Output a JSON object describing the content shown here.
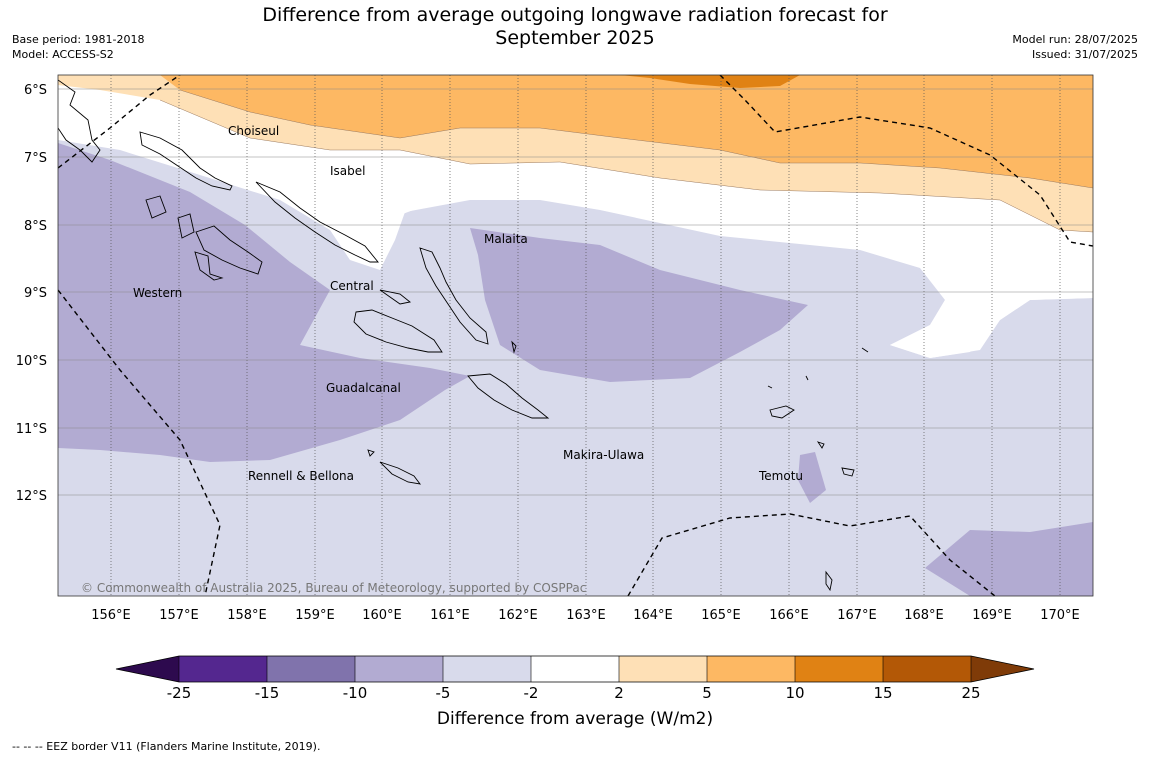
{
  "header": {
    "title_line1": "Difference from average outgoing longwave radiation forecast for",
    "title_line2": "September 2025",
    "base_period": "Base period: 1981-2018",
    "model": "Model: ACCESS-S2",
    "model_run": "Model run: 28/07/2025",
    "issued": "Issued: 31/07/2025"
  },
  "map": {
    "lat_labels": [
      "6°S",
      "7°S",
      "8°S",
      "9°S",
      "10°S",
      "11°S",
      "12°S"
    ],
    "lon_labels": [
      "156°E",
      "157°E",
      "158°E",
      "159°E",
      "160°E",
      "161°E",
      "162°E",
      "163°E",
      "164°E",
      "165°E",
      "166°E",
      "167°E",
      "168°E",
      "169°E",
      "170°E"
    ],
    "provinces": [
      "Choiseul",
      "Isabel",
      "Malaita",
      "Western",
      "Central",
      "Guadalcanal",
      "Makira-Ulawa",
      "Temotu",
      "Rennell & Bellona"
    ],
    "copyright": "© Commonwealth of Australia 2025, Bureau of Meteorology, supported by COSPPac",
    "fill_colors": {
      "below_minus25": "#2d0a4e",
      "minus25_minus15": "#54278f",
      "minus15_minus10": "#8073ac",
      "minus10_minus5": "#b2abd2",
      "minus5_minus2": "#d8daeb",
      "minus2_2": "#ffffff",
      "2_5": "#fee0b6",
      "5_10": "#fdb863",
      "10_15": "#e08214",
      "15_25": "#b35806",
      "above_25": "#7f3b08"
    }
  },
  "colorbar": {
    "tick_labels": [
      "-25",
      "-15",
      "-10",
      "-5",
      "-2",
      "2",
      "5",
      "10",
      "15",
      "25"
    ],
    "title": "Difference from average (W/m2)"
  },
  "footnote": "--  --  -- EEZ border V11 (Flanders Marine Institute, 2019)."
}
